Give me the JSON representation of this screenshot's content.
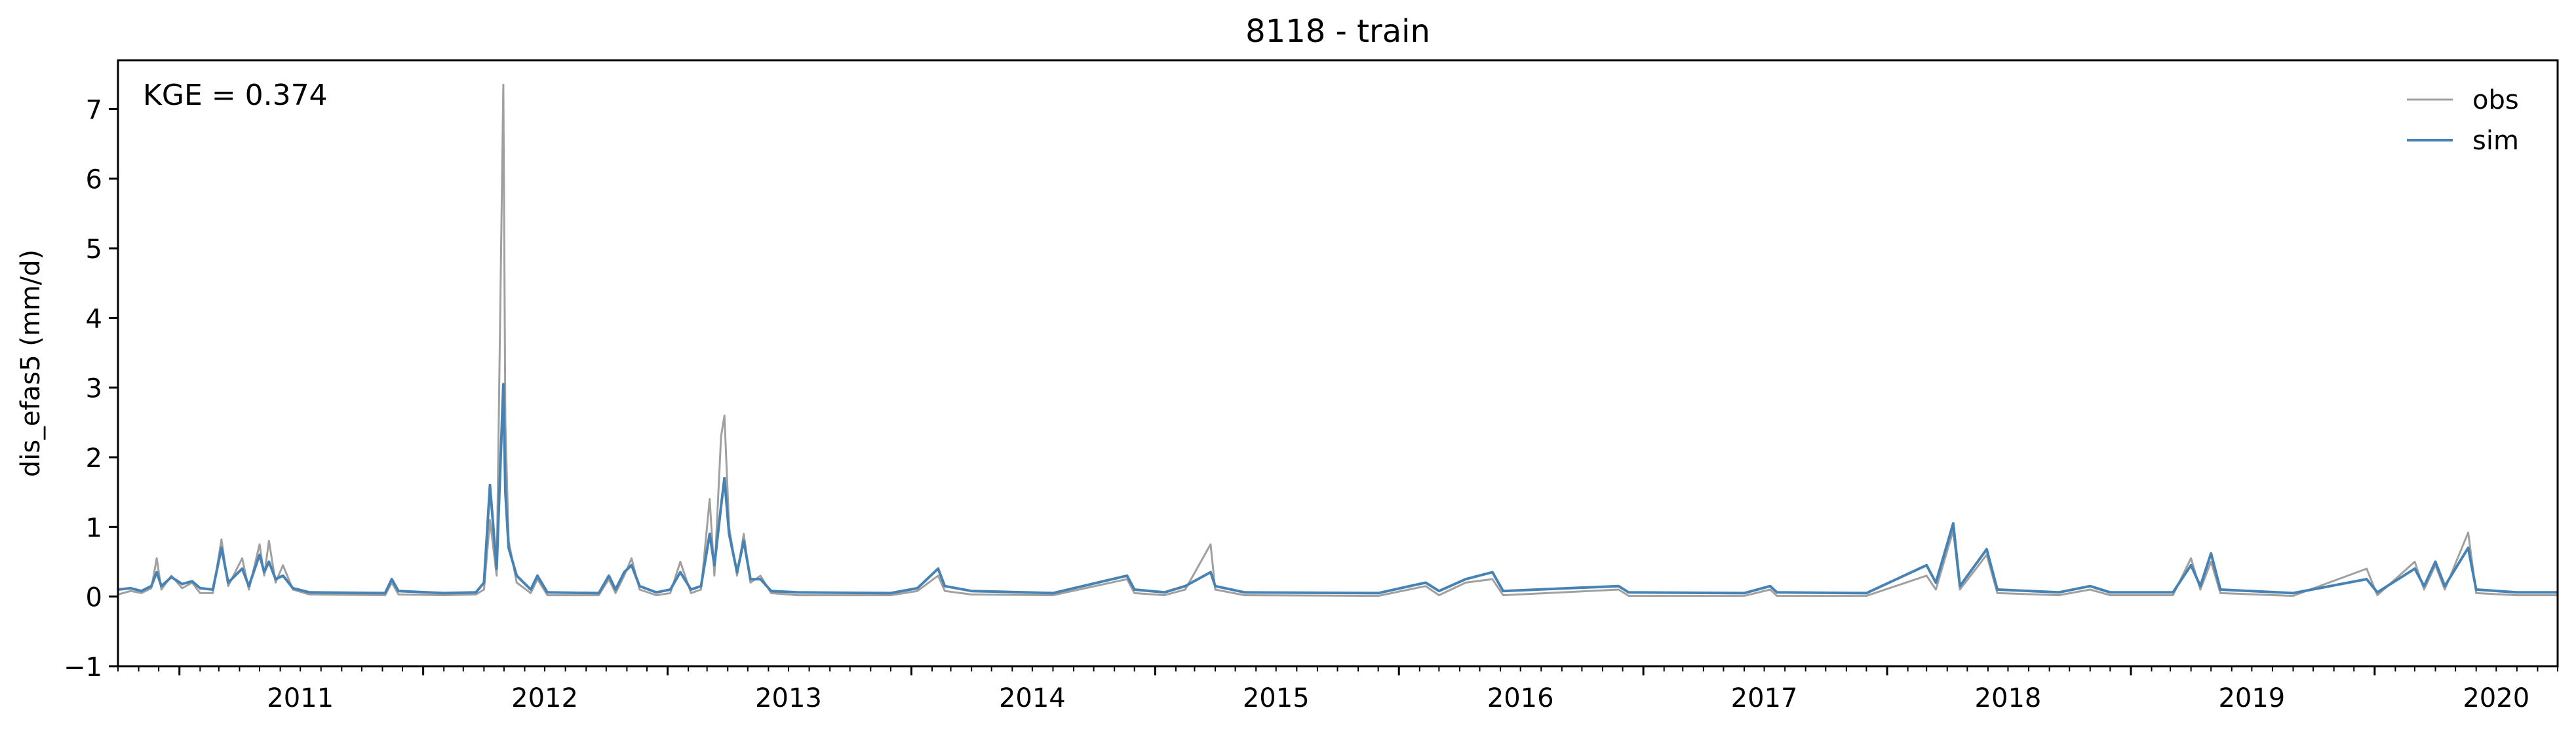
{
  "chart_data": {
    "type": "line",
    "title": "8118 - train",
    "xlabel": "",
    "ylabel": "dis_efas5 (mm/d)",
    "annotation": "KGE = 0.374",
    "xlim": [
      "2010-10-01",
      "2020-10-01"
    ],
    "ylim": [
      -1,
      7.7
    ],
    "yticks": [
      -1,
      0,
      1,
      2,
      3,
      4,
      5,
      6,
      7
    ],
    "xticks": [
      "2011",
      "2012",
      "2013",
      "2014",
      "2015",
      "2016",
      "2017",
      "2018",
      "2019",
      "2020"
    ],
    "legend": {
      "placement": "top-right",
      "entries": [
        "obs",
        "sim"
      ]
    },
    "grid": false,
    "colors": {
      "obs": "#a0a0a0",
      "sim": "#4682b4"
    },
    "series": [
      {
        "name": "obs",
        "points": [
          [
            "2010-10-01",
            0.03
          ],
          [
            "2010-10-20",
            0.08
          ],
          [
            "2010-11-05",
            0.05
          ],
          [
            "2010-11-20",
            0.12
          ],
          [
            "2010-11-28",
            0.55
          ],
          [
            "2010-12-05",
            0.1
          ],
          [
            "2010-12-20",
            0.3
          ],
          [
            "2011-01-05",
            0.12
          ],
          [
            "2011-01-20",
            0.2
          ],
          [
            "2011-02-01",
            0.05
          ],
          [
            "2011-02-20",
            0.05
          ],
          [
            "2011-03-05",
            0.82
          ],
          [
            "2011-03-15",
            0.15
          ],
          [
            "2011-04-05",
            0.55
          ],
          [
            "2011-04-15",
            0.1
          ],
          [
            "2011-05-01",
            0.75
          ],
          [
            "2011-05-08",
            0.3
          ],
          [
            "2011-05-15",
            0.8
          ],
          [
            "2011-05-25",
            0.2
          ],
          [
            "2011-06-05",
            0.45
          ],
          [
            "2011-06-20",
            0.1
          ],
          [
            "2011-07-15",
            0.03
          ],
          [
            "2011-11-05",
            0.02
          ],
          [
            "2011-11-15",
            0.2
          ],
          [
            "2011-11-25",
            0.03
          ],
          [
            "2012-02-01",
            0.02
          ],
          [
            "2012-03-20",
            0.03
          ],
          [
            "2012-04-01",
            0.1
          ],
          [
            "2012-04-10",
            1.1
          ],
          [
            "2012-04-20",
            0.3
          ],
          [
            "2012-04-30",
            7.35
          ],
          [
            "2012-05-03",
            2.5
          ],
          [
            "2012-05-08",
            0.8
          ],
          [
            "2012-05-20",
            0.2
          ],
          [
            "2012-06-10",
            0.05
          ],
          [
            "2012-06-20",
            0.25
          ],
          [
            "2012-07-05",
            0.02
          ],
          [
            "2012-09-20",
            0.02
          ],
          [
            "2012-10-05",
            0.25
          ],
          [
            "2012-10-15",
            0.05
          ],
          [
            "2012-10-28",
            0.3
          ],
          [
            "2012-11-08",
            0.55
          ],
          [
            "2012-11-20",
            0.1
          ],
          [
            "2012-12-15",
            0.02
          ],
          [
            "2013-01-05",
            0.05
          ],
          [
            "2013-01-20",
            0.5
          ],
          [
            "2013-02-05",
            0.05
          ],
          [
            "2013-02-20",
            0.1
          ],
          [
            "2013-03-05",
            1.4
          ],
          [
            "2013-03-12",
            0.3
          ],
          [
            "2013-03-22",
            2.3
          ],
          [
            "2013-03-27",
            2.6
          ],
          [
            "2013-04-03",
            1.0
          ],
          [
            "2013-04-15",
            0.3
          ],
          [
            "2013-04-25",
            0.9
          ],
          [
            "2013-05-05",
            0.2
          ],
          [
            "2013-05-20",
            0.3
          ],
          [
            "2013-06-05",
            0.05
          ],
          [
            "2013-07-15",
            0.02
          ],
          [
            "2013-12-01",
            0.02
          ],
          [
            "2014-01-10",
            0.08
          ],
          [
            "2014-02-10",
            0.3
          ],
          [
            "2014-02-20",
            0.08
          ],
          [
            "2014-04-01",
            0.03
          ],
          [
            "2014-08-01",
            0.02
          ],
          [
            "2014-11-20",
            0.25
          ],
          [
            "2014-12-01",
            0.05
          ],
          [
            "2015-01-15",
            0.02
          ],
          [
            "2015-02-15",
            0.1
          ],
          [
            "2015-03-25",
            0.75
          ],
          [
            "2015-04-01",
            0.1
          ],
          [
            "2015-05-15",
            0.02
          ],
          [
            "2015-12-01",
            0.01
          ],
          [
            "2016-02-10",
            0.15
          ],
          [
            "2016-03-01",
            0.02
          ],
          [
            "2016-04-10",
            0.2
          ],
          [
            "2016-05-20",
            0.25
          ],
          [
            "2016-06-05",
            0.02
          ],
          [
            "2016-11-25",
            0.1
          ],
          [
            "2016-12-10",
            0.01
          ],
          [
            "2017-06-01",
            0.01
          ],
          [
            "2017-07-10",
            0.1
          ],
          [
            "2017-07-20",
            0.01
          ],
          [
            "2017-12-01",
            0.01
          ],
          [
            "2018-03-01",
            0.3
          ],
          [
            "2018-03-15",
            0.1
          ],
          [
            "2018-04-10",
            0.95
          ],
          [
            "2018-04-20",
            0.1
          ],
          [
            "2018-05-30",
            0.6
          ],
          [
            "2018-06-15",
            0.05
          ],
          [
            "2018-09-15",
            0.02
          ],
          [
            "2018-11-01",
            0.1
          ],
          [
            "2018-12-01",
            0.02
          ],
          [
            "2019-03-05",
            0.02
          ],
          [
            "2019-04-01",
            0.55
          ],
          [
            "2019-04-15",
            0.1
          ],
          [
            "2019-05-01",
            0.5
          ],
          [
            "2019-05-15",
            0.05
          ],
          [
            "2019-09-01",
            0.01
          ],
          [
            "2019-12-20",
            0.4
          ],
          [
            "2020-01-05",
            0.02
          ],
          [
            "2020-03-01",
            0.5
          ],
          [
            "2020-03-15",
            0.1
          ],
          [
            "2020-04-01",
            0.45
          ],
          [
            "2020-04-15",
            0.1
          ],
          [
            "2020-05-20",
            0.92
          ],
          [
            "2020-06-01",
            0.05
          ],
          [
            "2020-08-01",
            0.02
          ],
          [
            "2020-10-01",
            0.02
          ]
        ]
      },
      {
        "name": "sim",
        "points": [
          [
            "2010-10-01",
            0.1
          ],
          [
            "2010-10-20",
            0.12
          ],
          [
            "2010-11-05",
            0.08
          ],
          [
            "2010-11-20",
            0.15
          ],
          [
            "2010-11-28",
            0.35
          ],
          [
            "2010-12-05",
            0.15
          ],
          [
            "2010-12-20",
            0.28
          ],
          [
            "2011-01-05",
            0.18
          ],
          [
            "2011-01-20",
            0.22
          ],
          [
            "2011-02-01",
            0.12
          ],
          [
            "2011-02-20",
            0.1
          ],
          [
            "2011-03-05",
            0.7
          ],
          [
            "2011-03-15",
            0.2
          ],
          [
            "2011-04-05",
            0.4
          ],
          [
            "2011-04-15",
            0.15
          ],
          [
            "2011-05-01",
            0.6
          ],
          [
            "2011-05-08",
            0.35
          ],
          [
            "2011-05-15",
            0.5
          ],
          [
            "2011-05-25",
            0.25
          ],
          [
            "2011-06-05",
            0.3
          ],
          [
            "2011-06-20",
            0.12
          ],
          [
            "2011-07-15",
            0.06
          ],
          [
            "2011-11-05",
            0.05
          ],
          [
            "2011-11-15",
            0.25
          ],
          [
            "2011-11-25",
            0.08
          ],
          [
            "2012-02-01",
            0.05
          ],
          [
            "2012-03-20",
            0.06
          ],
          [
            "2012-04-01",
            0.2
          ],
          [
            "2012-04-10",
            1.6
          ],
          [
            "2012-04-20",
            0.4
          ],
          [
            "2012-04-30",
            3.05
          ],
          [
            "2012-05-03",
            1.5
          ],
          [
            "2012-05-08",
            0.7
          ],
          [
            "2012-05-20",
            0.3
          ],
          [
            "2012-06-10",
            0.1
          ],
          [
            "2012-06-20",
            0.3
          ],
          [
            "2012-07-05",
            0.06
          ],
          [
            "2012-09-20",
            0.05
          ],
          [
            "2012-10-05",
            0.3
          ],
          [
            "2012-10-15",
            0.1
          ],
          [
            "2012-10-28",
            0.35
          ],
          [
            "2012-11-08",
            0.45
          ],
          [
            "2012-11-20",
            0.15
          ],
          [
            "2012-12-15",
            0.06
          ],
          [
            "2013-01-05",
            0.1
          ],
          [
            "2013-01-20",
            0.35
          ],
          [
            "2013-02-05",
            0.1
          ],
          [
            "2013-02-20",
            0.15
          ],
          [
            "2013-03-05",
            0.9
          ],
          [
            "2013-03-12",
            0.45
          ],
          [
            "2013-03-22",
            1.3
          ],
          [
            "2013-03-27",
            1.7
          ],
          [
            "2013-04-03",
            0.9
          ],
          [
            "2013-04-15",
            0.35
          ],
          [
            "2013-04-25",
            0.8
          ],
          [
            "2013-05-05",
            0.25
          ],
          [
            "2013-05-20",
            0.25
          ],
          [
            "2013-06-05",
            0.08
          ],
          [
            "2013-07-15",
            0.06
          ],
          [
            "2013-12-01",
            0.05
          ],
          [
            "2014-01-10",
            0.12
          ],
          [
            "2014-02-10",
            0.4
          ],
          [
            "2014-02-20",
            0.15
          ],
          [
            "2014-04-01",
            0.08
          ],
          [
            "2014-08-01",
            0.05
          ],
          [
            "2014-11-20",
            0.3
          ],
          [
            "2014-12-01",
            0.1
          ],
          [
            "2015-01-15",
            0.06
          ],
          [
            "2015-02-15",
            0.15
          ],
          [
            "2015-03-25",
            0.35
          ],
          [
            "2015-04-01",
            0.15
          ],
          [
            "2015-05-15",
            0.06
          ],
          [
            "2015-12-01",
            0.05
          ],
          [
            "2016-02-10",
            0.2
          ],
          [
            "2016-03-01",
            0.08
          ],
          [
            "2016-04-10",
            0.25
          ],
          [
            "2016-05-20",
            0.35
          ],
          [
            "2016-06-05",
            0.08
          ],
          [
            "2016-11-25",
            0.15
          ],
          [
            "2016-12-10",
            0.06
          ],
          [
            "2017-06-01",
            0.05
          ],
          [
            "2017-07-10",
            0.15
          ],
          [
            "2017-07-20",
            0.06
          ],
          [
            "2017-12-01",
            0.05
          ],
          [
            "2018-03-01",
            0.45
          ],
          [
            "2018-03-15",
            0.2
          ],
          [
            "2018-04-10",
            1.05
          ],
          [
            "2018-04-20",
            0.15
          ],
          [
            "2018-05-30",
            0.68
          ],
          [
            "2018-06-15",
            0.1
          ],
          [
            "2018-09-15",
            0.06
          ],
          [
            "2018-11-01",
            0.15
          ],
          [
            "2018-12-01",
            0.06
          ],
          [
            "2019-03-05",
            0.06
          ],
          [
            "2019-04-01",
            0.45
          ],
          [
            "2019-04-15",
            0.15
          ],
          [
            "2019-05-01",
            0.62
          ],
          [
            "2019-05-15",
            0.1
          ],
          [
            "2019-09-01",
            0.05
          ],
          [
            "2019-12-20",
            0.25
          ],
          [
            "2020-01-05",
            0.06
          ],
          [
            "2020-03-01",
            0.4
          ],
          [
            "2020-03-15",
            0.15
          ],
          [
            "2020-04-01",
            0.5
          ],
          [
            "2020-04-15",
            0.15
          ],
          [
            "2020-05-20",
            0.7
          ],
          [
            "2020-06-01",
            0.1
          ],
          [
            "2020-08-01",
            0.06
          ],
          [
            "2020-10-01",
            0.06
          ]
        ]
      }
    ]
  }
}
